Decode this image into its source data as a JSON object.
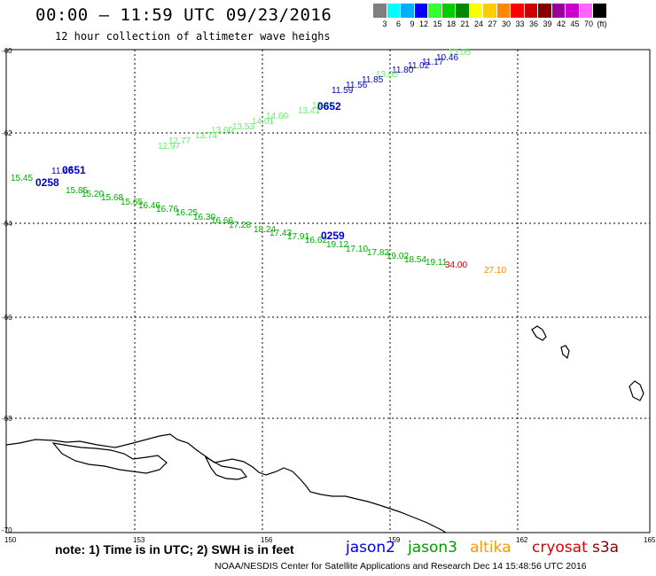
{
  "header": {
    "title": "00:00 — 11:59 UTC 09/23/2016",
    "subtitle": "12 hour collection of altimeter wave heighs"
  },
  "color_scale": {
    "colors": [
      "#7f7f7f",
      "#00ffff",
      "#00b0ff",
      "#0000ff",
      "#33ff33",
      "#00cc00",
      "#008800",
      "#ffff00",
      "#ffcc00",
      "#ff8800",
      "#ff0000",
      "#cc0000",
      "#880000",
      "#990099",
      "#cc00cc",
      "#ff66ff",
      "#000000"
    ],
    "labels": [
      "3",
      "6",
      "9",
      "12",
      "15",
      "18",
      "21",
      "24",
      "27",
      "30",
      "33",
      "36",
      "39",
      "42",
      "45",
      "70",
      "(ft)"
    ]
  },
  "map": {
    "lat_labels": [
      "-60",
      "-62",
      "-64",
      "-66",
      "-68",
      "-70"
    ],
    "lon_labels": [
      "150",
      "153",
      "156",
      "159",
      "162",
      "165"
    ],
    "track_labels": [
      {
        "t": "13.05",
        "c": "#66ee66"
      },
      {
        "t": "10.46",
        "c": "#0000cc"
      },
      {
        "t": "11.17",
        "c": "#0000cc"
      },
      {
        "t": "11.02",
        "c": "#0000cc"
      },
      {
        "t": "11.80",
        "c": "#0000cc"
      },
      {
        "t": "13.05",
        "c": "#66ee66"
      },
      {
        "t": "11.85",
        "c": "#0000cc"
      },
      {
        "t": "11.56",
        "c": "#0000cc"
      },
      {
        "t": "11.59",
        "c": "#0000cc"
      },
      {
        "t": "13.89",
        "c": "#66ee66"
      },
      {
        "t": "13.41",
        "c": "#66ee66"
      },
      {
        "t": "14.60",
        "c": "#66ee66"
      },
      {
        "t": "14.01",
        "c": "#66ee66"
      },
      {
        "t": "13.53",
        "c": "#66ee66"
      },
      {
        "t": "13.60",
        "c": "#66ee66"
      },
      {
        "t": "13.74",
        "c": "#66ee66"
      },
      {
        "t": "12.77",
        "c": "#66ee66"
      },
      {
        "t": "12.97",
        "c": "#66ee66"
      },
      {
        "t": "11.46",
        "c": "#0000cc"
      },
      {
        "t": "15.45",
        "c": "#00aa00"
      },
      {
        "t": "15.85",
        "c": "#00aa00"
      },
      {
        "t": "15.20",
        "c": "#00aa00"
      },
      {
        "t": "15.68",
        "c": "#00aa00"
      },
      {
        "t": "15.65",
        "c": "#00aa00"
      },
      {
        "t": "16.46",
        "c": "#00aa00"
      },
      {
        "t": "16.76",
        "c": "#00aa00"
      },
      {
        "t": "16.25",
        "c": "#00aa00"
      },
      {
        "t": "16.30",
        "c": "#00aa00"
      },
      {
        "t": "16.66",
        "c": "#00aa00"
      },
      {
        "t": "17.28",
        "c": "#00aa00"
      },
      {
        "t": "18.24",
        "c": "#00aa00"
      },
      {
        "t": "17.43",
        "c": "#00aa00"
      },
      {
        "t": "17.91",
        "c": "#00aa00"
      },
      {
        "t": "16.62",
        "c": "#00aa00"
      },
      {
        "t": "19.12",
        "c": "#00aa00"
      },
      {
        "t": "17.10",
        "c": "#00aa00"
      },
      {
        "t": "17.82",
        "c": "#00aa00"
      },
      {
        "t": "19.02",
        "c": "#00aa00"
      },
      {
        "t": "18.54",
        "c": "#00aa00"
      },
      {
        "t": "19.11",
        "c": "#00aa00"
      },
      {
        "t": "34.00",
        "c": "#cc0000"
      },
      {
        "t": "27.10",
        "c": "#ff8800"
      }
    ],
    "pass_labels": [
      "0652",
      "0651",
      "0258",
      "0259"
    ]
  },
  "footer": {
    "note": "note: 1) Time is in UTC; 2) SWH is in feet",
    "satellites": [
      {
        "name": "jason2",
        "color": "#0000ee"
      },
      {
        "name": "jason3",
        "color": "#009900"
      },
      {
        "name": "altika",
        "color": "#ff9900"
      },
      {
        "name": "cryosat",
        "color": "#dd0000"
      },
      {
        "name": "s3a",
        "color": "#880000"
      }
    ],
    "credit": "NOAA/NESDIS Center for Satellite Applications and Research    Dec 14 15:48:56 UTC 2016"
  }
}
